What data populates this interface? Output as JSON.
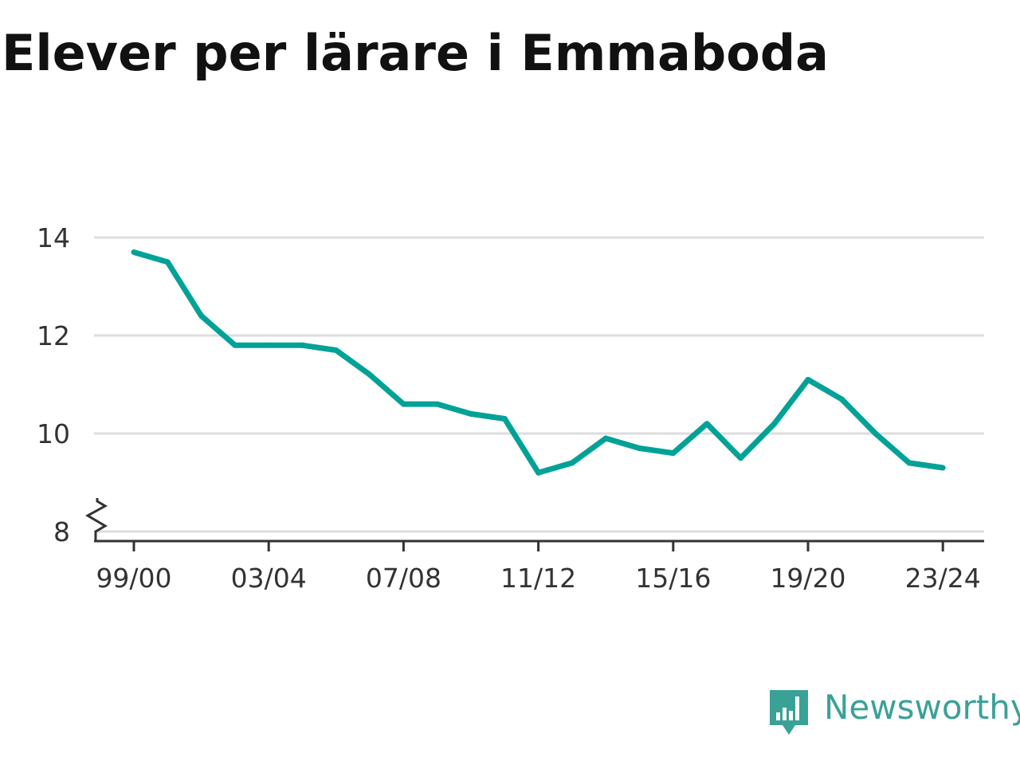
{
  "title": "Elever per lärare i Emmaboda",
  "brand": {
    "name": "Newsworthy",
    "icon": "bar-chart-speech-bubble-icon"
  },
  "colors": {
    "line": "#00a297",
    "grid": "#dddddd",
    "axis": "#333333",
    "brand": "#3aa197"
  },
  "chart_data": {
    "type": "line",
    "title": "Elever per lärare i Emmaboda",
    "xlabel": "",
    "ylabel": "",
    "x": [
      "99/00",
      "00/01",
      "01/02",
      "02/03",
      "03/04",
      "04/05",
      "05/06",
      "06/07",
      "07/08",
      "08/09",
      "09/10",
      "10/11",
      "11/12",
      "12/13",
      "13/14",
      "14/15",
      "15/16",
      "16/17",
      "17/18",
      "18/19",
      "19/20",
      "20/21",
      "21/22",
      "22/23",
      "23/24"
    ],
    "x_tick_labels": [
      "99/00",
      "03/04",
      "07/08",
      "11/12",
      "15/16",
      "19/20",
      "23/24"
    ],
    "series": [
      {
        "values": [
          13.7,
          13.5,
          12.4,
          11.8,
          11.8,
          11.8,
          11.7,
          11.2,
          10.6,
          10.6,
          10.4,
          10.3,
          9.2,
          9.4,
          9.9,
          9.7,
          9.6,
          10.2,
          9.5,
          10.2,
          11.1,
          10.7,
          10.0,
          9.4,
          9.3
        ]
      }
    ],
    "y_ticks": [
      8,
      10,
      12,
      14
    ],
    "ylim": [
      8,
      14
    ],
    "y_axis_break": true,
    "grid": "horizontal"
  }
}
